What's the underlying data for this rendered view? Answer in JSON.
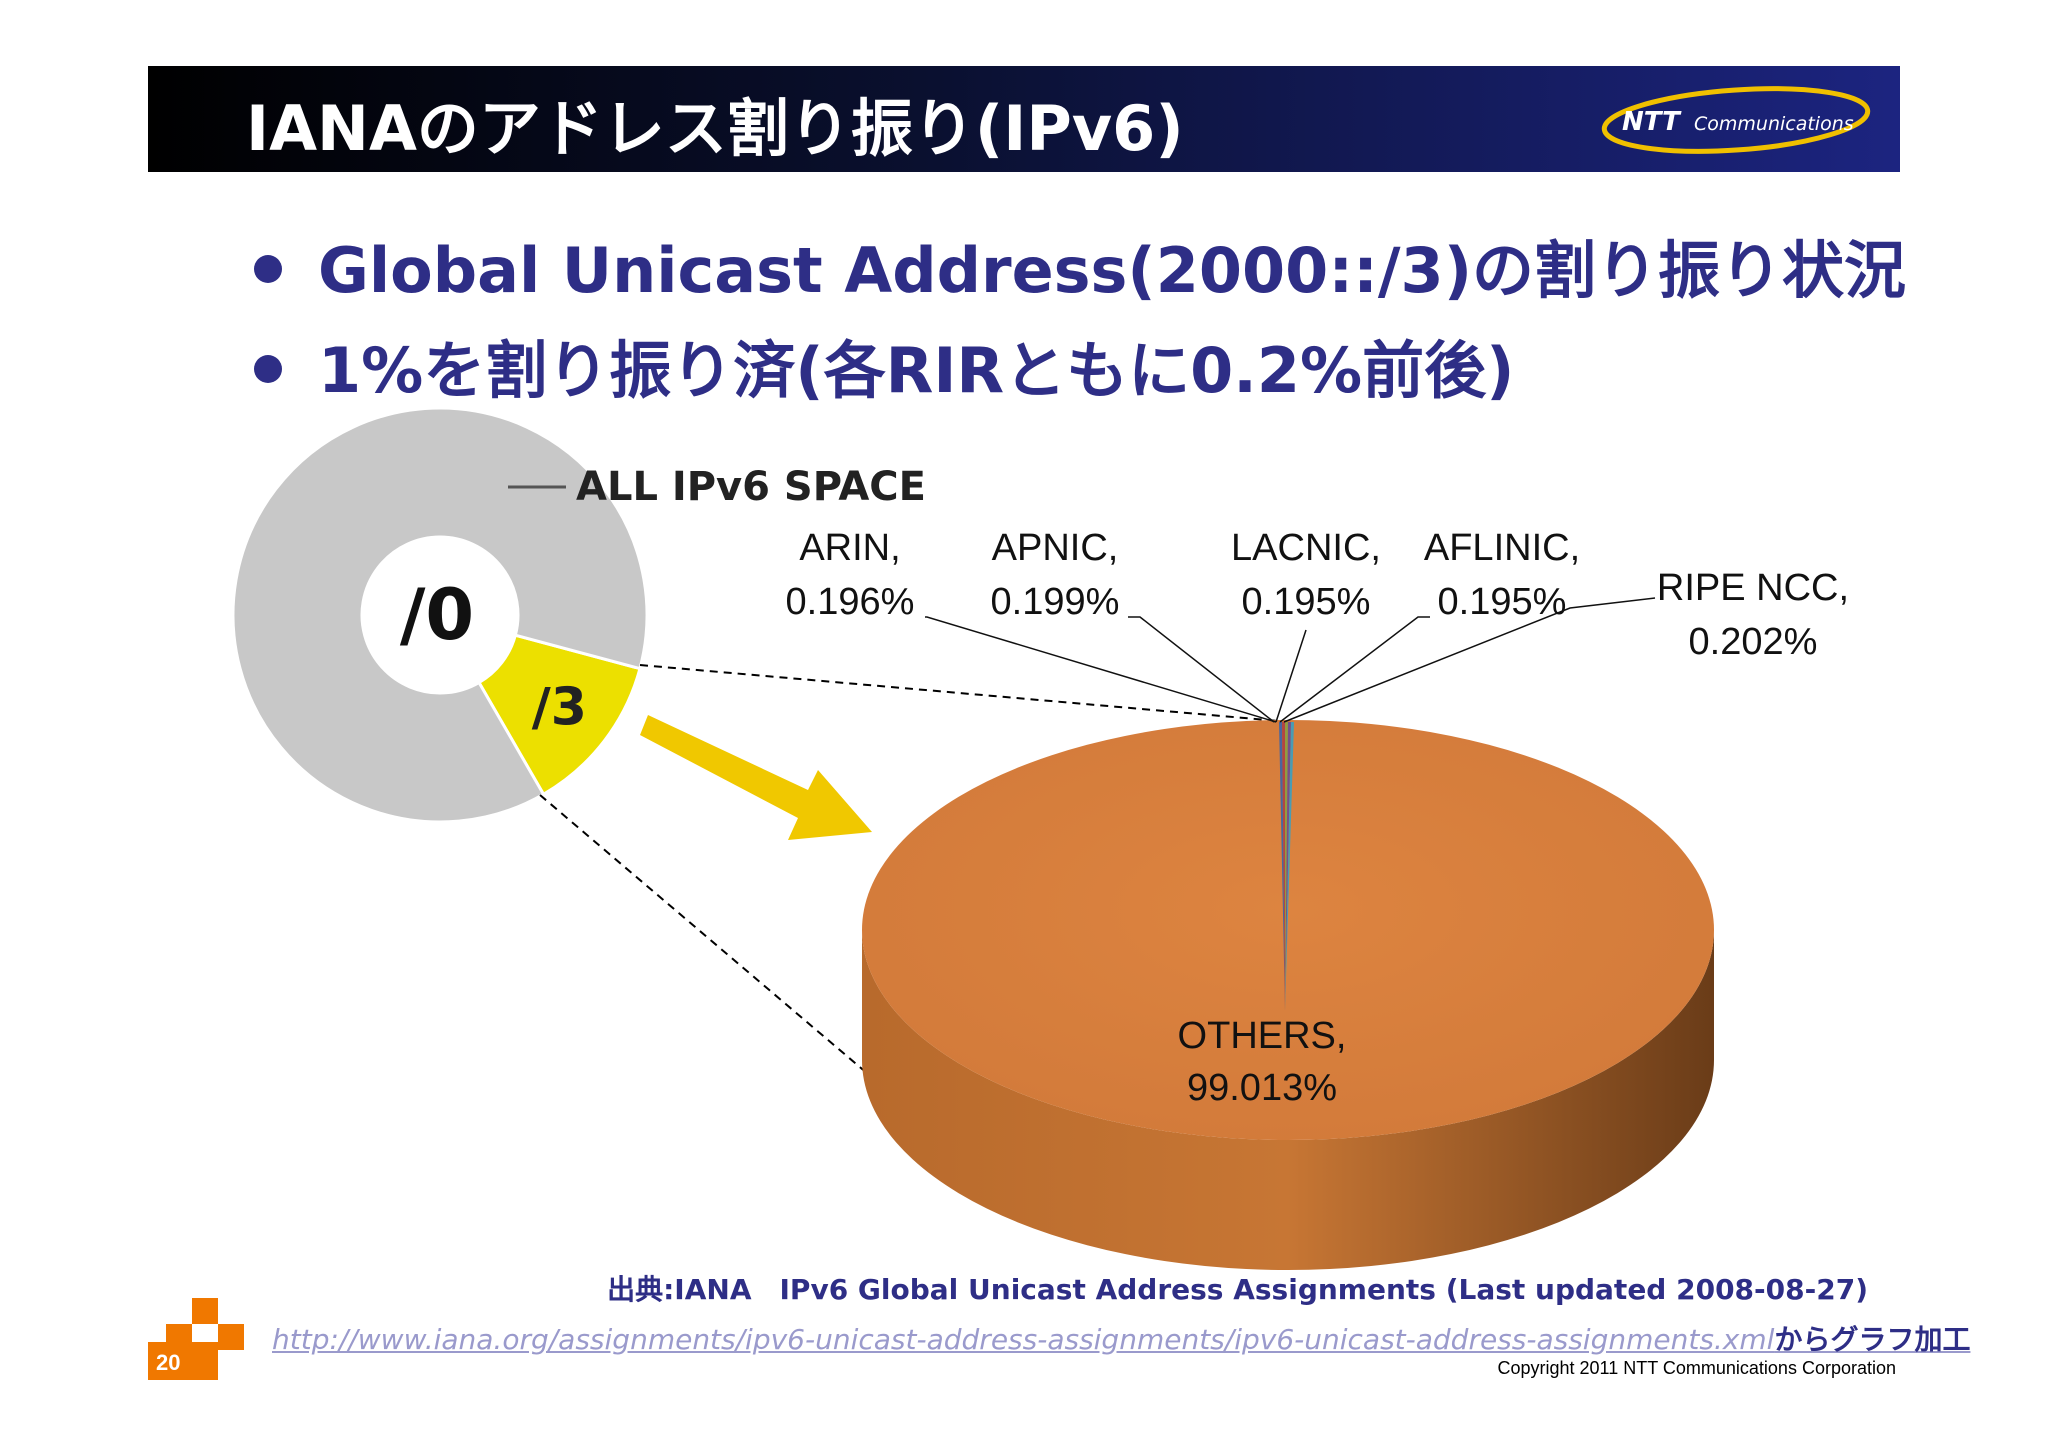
{
  "header": {
    "title": "IANAのアドレス割り振り(IPv6)",
    "logo_text": "NTT Communications",
    "logo_brand": "NTT",
    "logo_sub": "Communications"
  },
  "bullets": [
    "Global Unicast Address(2000::/3)の割り振り状況",
    "1%を割り振り済(各RIRともに0.2%前後)"
  ],
  "chart_data": [
    {
      "type": "pie",
      "title": "ALL IPv6 SPACE",
      "center_label": "/0",
      "slices": [
        {
          "label": "/3",
          "value": 12.5,
          "color": "#ece000"
        },
        {
          "label": "",
          "value": 87.5,
          "color": "#c8c8c8"
        }
      ]
    },
    {
      "type": "pie",
      "style": "3d",
      "slices": [
        {
          "name": "ARIN",
          "label": "ARIN,",
          "value_label": "0.196%",
          "value": 0.196,
          "color": "#3a64a8"
        },
        {
          "name": "APNIC",
          "label": "APNIC,",
          "value_label": "0.199%",
          "value": 0.199,
          "color": "#b04040"
        },
        {
          "name": "LACNIC",
          "label": "LACNIC,",
          "value_label": "0.195%",
          "value": 0.195,
          "color": "#8aa040"
        },
        {
          "name": "AFLINIC",
          "label": "AFLINIC,",
          "value_label": "0.195%",
          "value": 0.195,
          "color": "#6a4a94"
        },
        {
          "name": "RIPE NCC",
          "label": "RIPE NCC,",
          "value_label": "0.202%",
          "value": 0.202,
          "color": "#3aa0c0"
        },
        {
          "name": "OTHERS",
          "label": "OTHERS,",
          "value_label": "99.013%",
          "value": 99.013,
          "color": "#d8803e"
        }
      ]
    }
  ],
  "source": {
    "line1": "出典:IANA　IPv6 Global Unicast Address Assignments (Last updated 2008-08-27)",
    "url": "http://www.iana.org/assignments/ipv6-unicast-address-assignments/ipv6-unicast-address-assignments.xml",
    "url_suffix": "からグラフ加工"
  },
  "footer": {
    "copyright": "Copyright 2011 NTT Communications Corporation",
    "page_number": "20"
  },
  "colors": {
    "accent": "#2e2e86",
    "header_dark": "#000000",
    "header_light": "#1c2480",
    "arrow": "#f0c800",
    "orange": "#f07800"
  }
}
